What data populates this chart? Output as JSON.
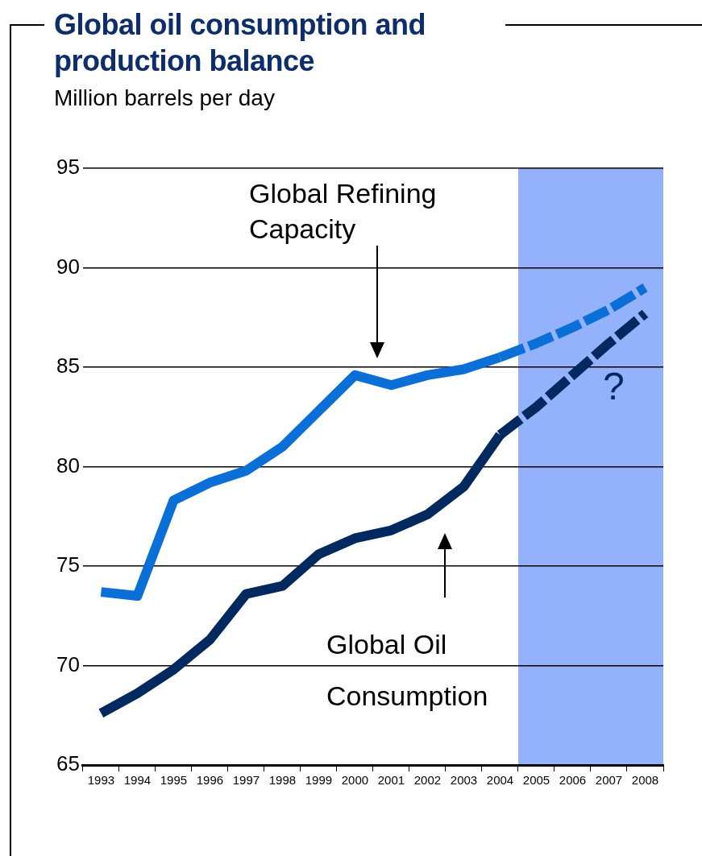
{
  "chart_data": {
    "type": "line",
    "title": "Global oil consumption and production balance",
    "subtitle": "Million barrels per day",
    "categories": [
      "1993",
      "1994",
      "1995",
      "1996",
      "1997",
      "1998",
      "1999",
      "2000",
      "2001",
      "2002",
      "2003",
      "2004",
      "2005",
      "2006",
      "2007",
      "2008"
    ],
    "series": [
      {
        "color": "#0a6fd6",
        "line_style": "solid",
        "values": [
          73.7,
          73.5,
          78.3,
          79.2,
          79.8,
          81.0,
          82.8,
          84.6,
          84.1,
          84.6,
          84.9,
          85.5,
          null,
          null,
          null,
          null
        ]
      },
      {
        "color": "#0a6fd6",
        "line_style": "dashed",
        "values": [
          null,
          null,
          null,
          null,
          null,
          null,
          null,
          null,
          null,
          null,
          null,
          85.5,
          86.2,
          87.0,
          87.9,
          89.0
        ]
      },
      {
        "color": "#002a5f",
        "line_style": "solid",
        "values": [
          67.6,
          68.6,
          69.8,
          71.3,
          73.6,
          74.0,
          75.6,
          76.4,
          76.8,
          77.6,
          79.0,
          81.6,
          null,
          null,
          null,
          null
        ]
      },
      {
        "color": "#002a5f",
        "line_style": "dashed",
        "values": [
          null,
          null,
          null,
          null,
          null,
          null,
          null,
          null,
          null,
          null,
          null,
          81.6,
          83.0,
          84.6,
          86.2,
          87.7
        ]
      }
    ],
    "ylim": [
      65,
      95
    ],
    "yticks": [
      65,
      70,
      75,
      80,
      85,
      90,
      95
    ],
    "grid": "y",
    "legend": false,
    "marker": "none",
    "bands": [
      {
        "axis": "x",
        "from": "2005",
        "to": "2008",
        "color": "#94b1fc"
      }
    ],
    "annotations": [
      "Global Refining Capacity",
      "Global Oil Consumption",
      "?"
    ]
  }
}
